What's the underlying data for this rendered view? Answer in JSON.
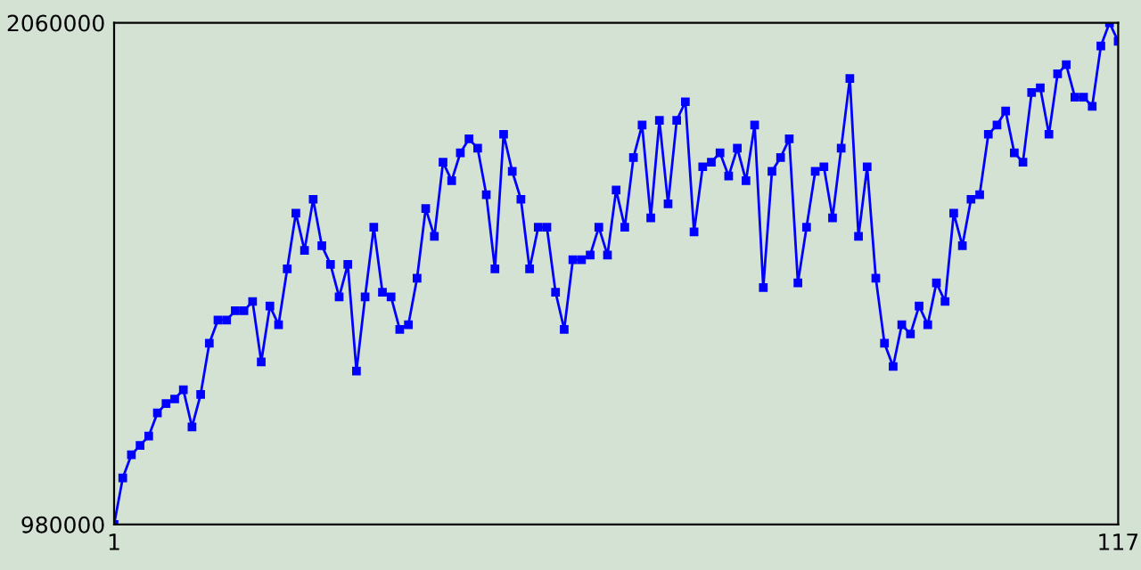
{
  "chart_data": {
    "type": "line",
    "x": [
      1,
      2,
      3,
      4,
      5,
      6,
      7,
      8,
      9,
      10,
      11,
      12,
      13,
      14,
      15,
      16,
      17,
      18,
      19,
      20,
      21,
      22,
      23,
      24,
      25,
      26,
      27,
      28,
      29,
      30,
      31,
      32,
      33,
      34,
      35,
      36,
      37,
      38,
      39,
      40,
      41,
      42,
      43,
      44,
      45,
      46,
      47,
      48,
      49,
      50,
      51,
      52,
      53,
      54,
      55,
      56,
      57,
      58,
      59,
      60,
      61,
      62,
      63,
      64,
      65,
      66,
      67,
      68,
      69,
      70,
      71,
      72,
      73,
      74,
      75,
      76,
      77,
      78,
      79,
      80,
      81,
      82,
      83,
      84,
      85,
      86,
      87,
      88,
      89,
      90,
      91,
      92,
      93,
      94,
      95,
      96,
      97,
      98,
      99,
      100,
      101,
      102,
      103,
      104,
      105,
      106,
      107,
      108,
      109,
      110,
      111,
      112,
      113,
      114,
      115,
      116,
      117
    ],
    "series": [
      {
        "color": "#0000ff",
        "values": [
          980000,
          1080000,
          1130000,
          1150000,
          1170000,
          1220000,
          1240000,
          1250000,
          1270000,
          1190000,
          1260000,
          1370000,
          1420000,
          1420000,
          1440000,
          1440000,
          1460000,
          1330000,
          1450000,
          1410000,
          1530000,
          1650000,
          1570000,
          1680000,
          1580000,
          1540000,
          1470000,
          1540000,
          1310000,
          1470000,
          1620000,
          1480000,
          1470000,
          1400000,
          1410000,
          1510000,
          1660000,
          1600000,
          1760000,
          1720000,
          1780000,
          1810000,
          1790000,
          1690000,
          1530000,
          1820000,
          1740000,
          1680000,
          1530000,
          1620000,
          1620000,
          1480000,
          1400000,
          1550000,
          1550000,
          1560000,
          1620000,
          1560000,
          1700000,
          1620000,
          1770000,
          1840000,
          1640000,
          1850000,
          1670000,
          1850000,
          1890000,
          1610000,
          1750000,
          1760000,
          1780000,
          1730000,
          1790000,
          1720000,
          1840000,
          1490000,
          1740000,
          1770000,
          1810000,
          1500000,
          1620000,
          1740000,
          1750000,
          1640000,
          1790000,
          1940000,
          1600000,
          1750000,
          1510000,
          1370000,
          1320000,
          1410000,
          1390000,
          1450000,
          1410000,
          1500000,
          1460000,
          1650000,
          1580000,
          1680000,
          1690000,
          1820000,
          1840000,
          1870000,
          1780000,
          1760000,
          1910000,
          1920000,
          1820000,
          1950000,
          1970000,
          1900000,
          1900000,
          1880000,
          2010000,
          2060000,
          2020000
        ]
      }
    ],
    "xlim": [
      1,
      117
    ],
    "xticks": [
      1,
      117
    ],
    "ylim": [
      980000,
      2060000
    ],
    "yticks": [
      980000,
      2060000
    ],
    "marker": "square",
    "line_style": "solid",
    "grid": false,
    "legend": false
  }
}
